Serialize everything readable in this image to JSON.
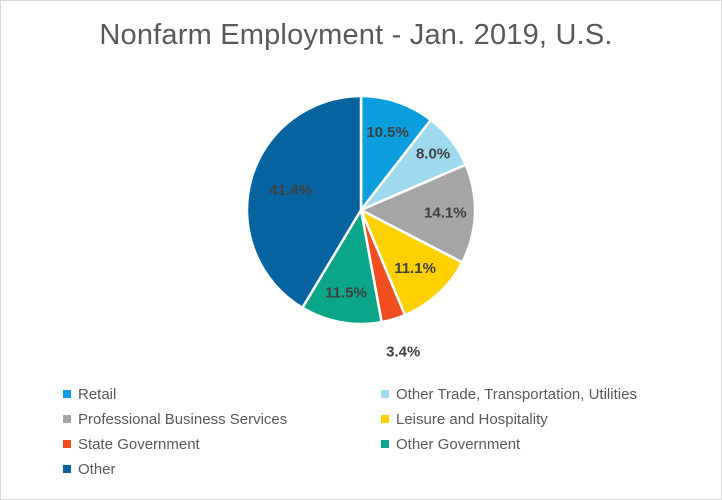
{
  "title": "Nonfarm Employment - Jan. 2019, U.S.",
  "chart_data": {
    "type": "pie",
    "title": "Nonfarm Employment - Jan. 2019, U.S.",
    "categories": [
      "Retail",
      "Other Trade, Transportation, Utilities",
      "Professional Business Services",
      "Leisure and Hospitality",
      "State Government",
      "Other Government",
      "Other"
    ],
    "values": [
      10.5,
      8.0,
      14.1,
      11.1,
      3.4,
      11.5,
      41.4
    ],
    "data_labels": [
      "10.5%",
      "8.0%",
      "14.1%",
      "11.1%",
      "3.4%",
      "11.5%",
      "41.4%"
    ],
    "colors": [
      "#0b9ede",
      "#9fd9ee",
      "#a5a5a5",
      "#ffd100",
      "#f24d1f",
      "#0ba68a",
      "#0563a0"
    ],
    "start_angle_deg": 0,
    "direction": "clockwise",
    "legend_position": "bottom"
  }
}
